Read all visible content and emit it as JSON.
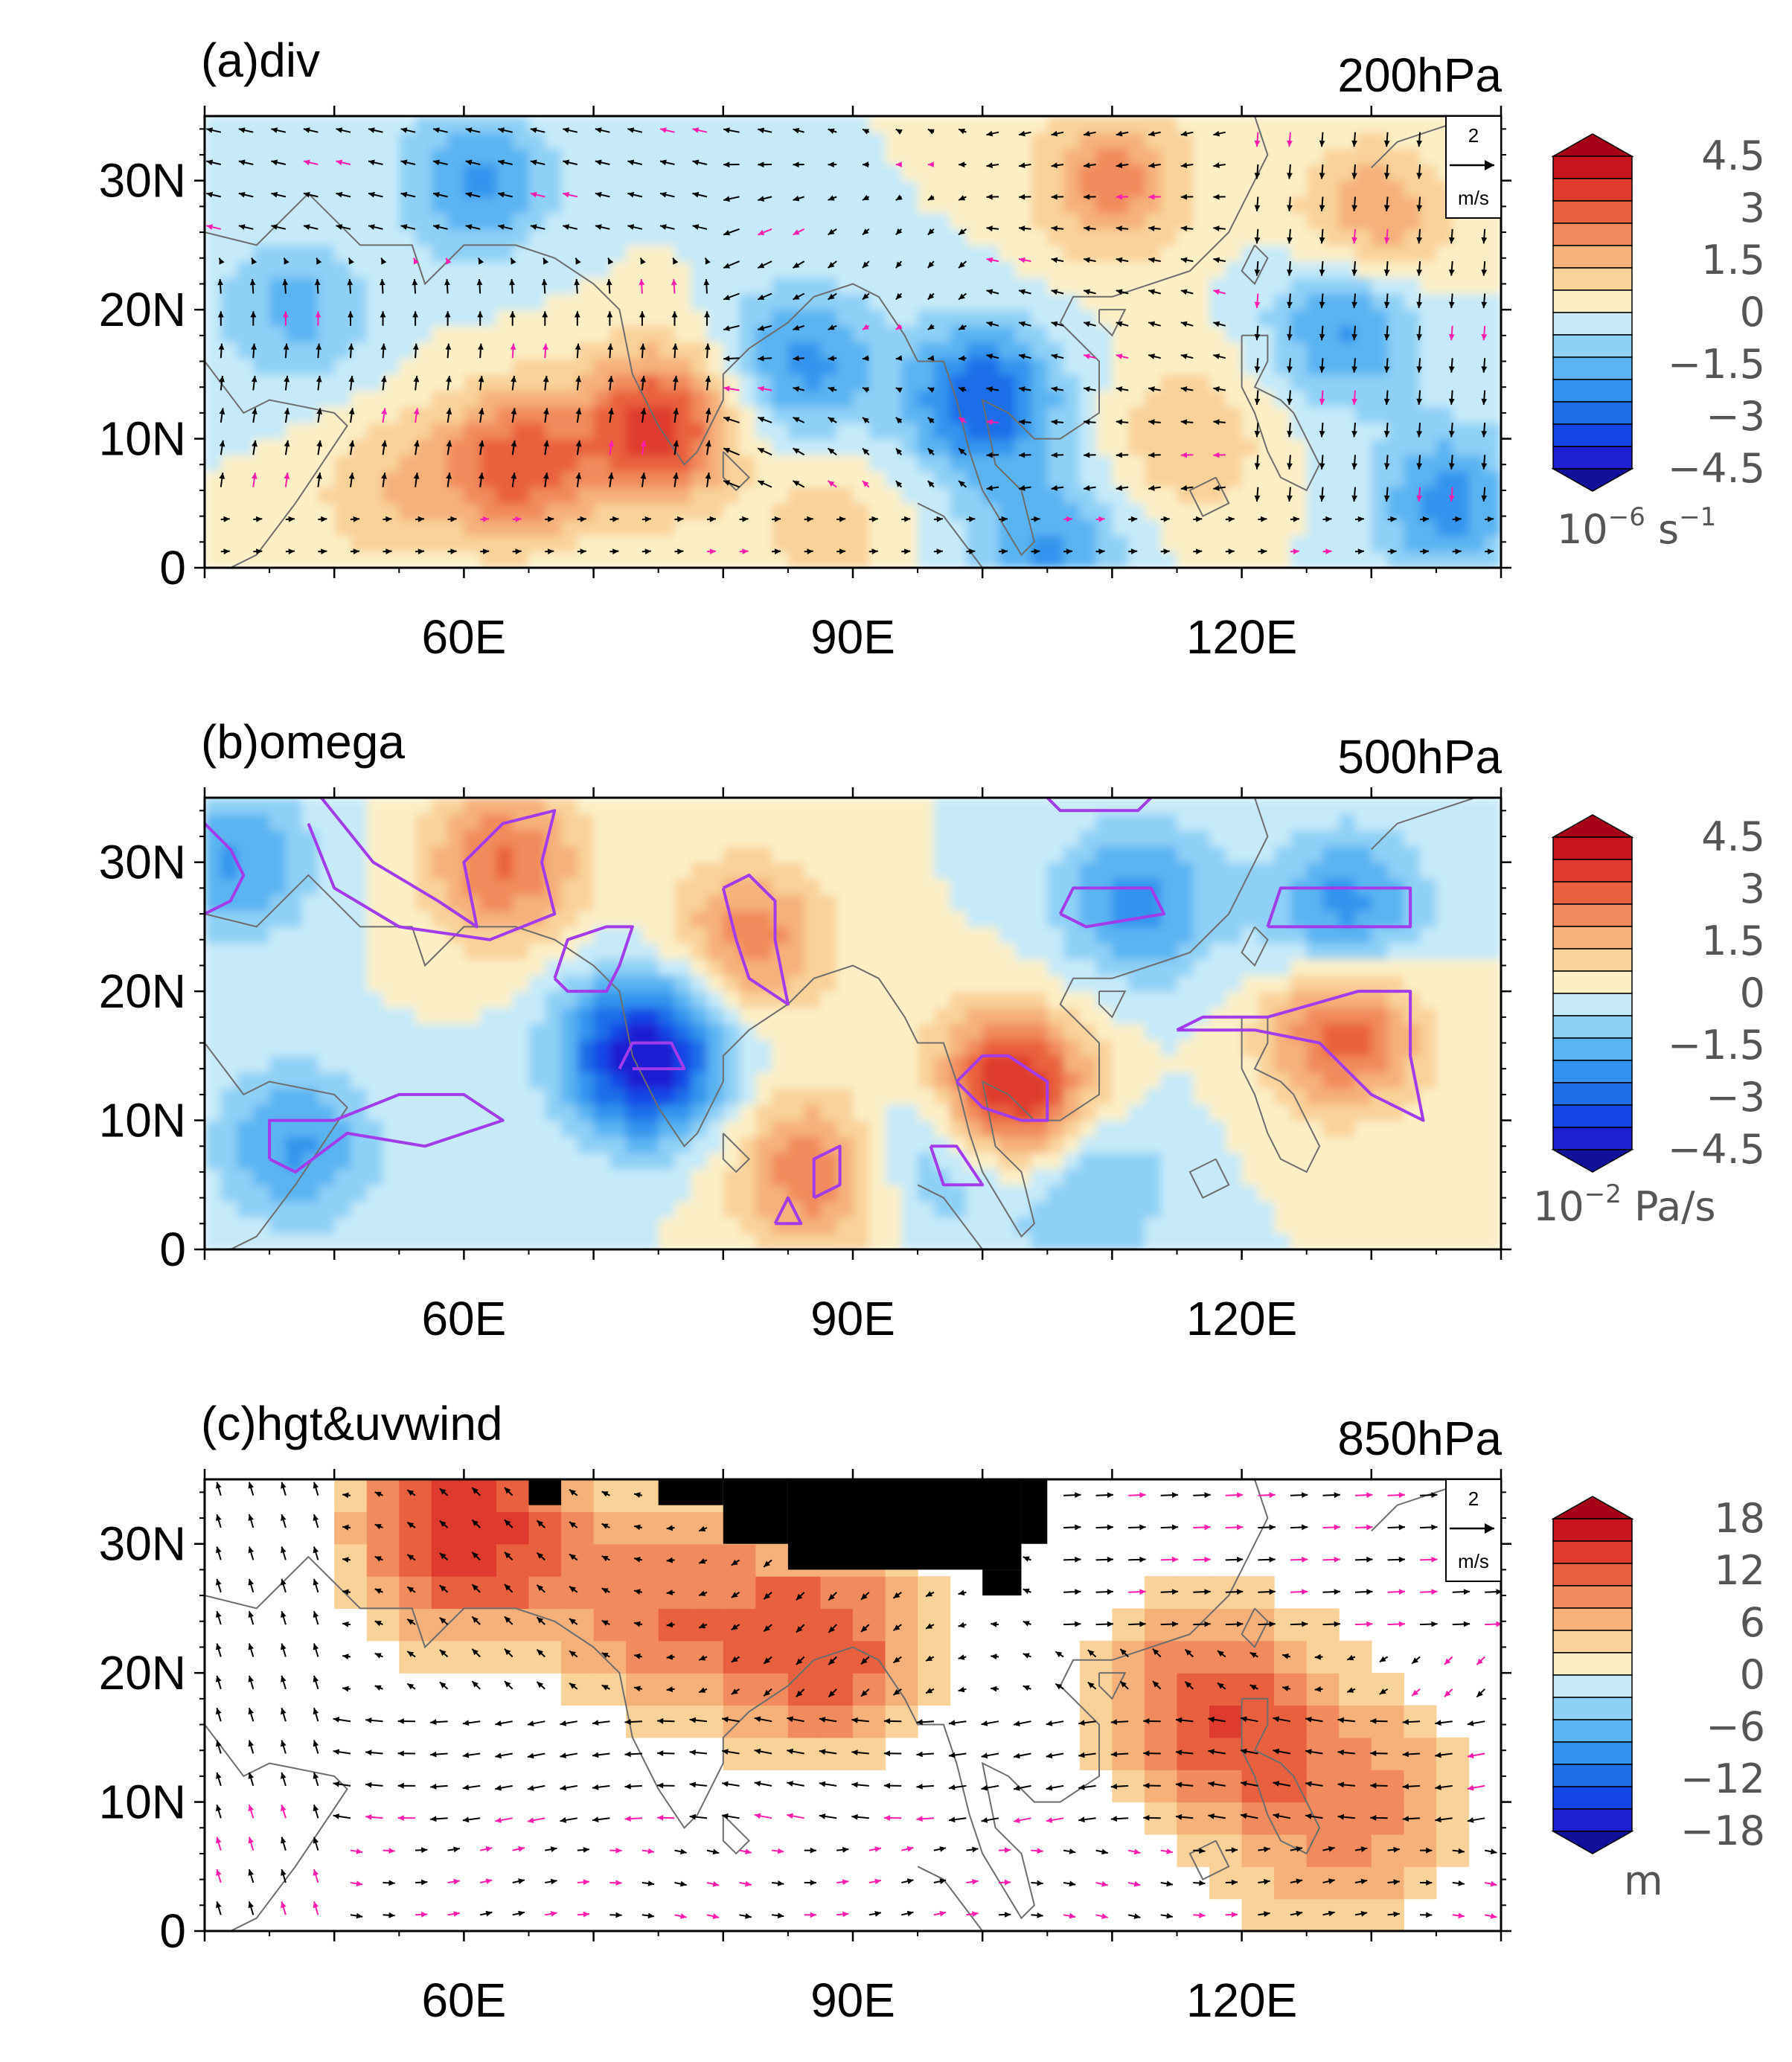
{
  "figure_kind": "three-panel climate anomaly map",
  "x_ticks": [
    "60E",
    "90E",
    "120E"
  ],
  "y_ticks": [
    "0",
    "10N",
    "20N",
    "30N"
  ],
  "panels": [
    {
      "id": "a",
      "title": "(a)div",
      "level": "200hPa",
      "colorbar_ticks": [
        "4.5",
        "3",
        "1.5",
        "0",
        "−1.5",
        "−3",
        "−4.5"
      ],
      "units_base": "10",
      "units_exp": "−6",
      "units_unit": " s",
      "units_unit_exp": "−1",
      "ref_vector": {
        "value": "2",
        "unit": "m/s"
      },
      "colors": {
        "pos": "#e8453a",
        "neg": "#2b8fe0"
      }
    },
    {
      "id": "b",
      "title": "(b)omega",
      "level": "500hPa",
      "colorbar_ticks": [
        "4.5",
        "3",
        "1.5",
        "0",
        "−1.5",
        "−3",
        "−4.5"
      ],
      "units_base": "10",
      "units_exp": "−2",
      "units_unit": " Pa/s",
      "units_unit_exp": "",
      "contour_color": "#a23bea"
    },
    {
      "id": "c",
      "title": "(c)hgt&uvwind",
      "level": "850hPa",
      "colorbar_ticks": [
        "18",
        "12",
        "6",
        "0",
        "−6",
        "−12",
        "−18"
      ],
      "units_base": "m",
      "units_exp": "",
      "units_unit": "",
      "units_unit_exp": "",
      "ref_vector": {
        "value": "2",
        "unit": "m/s"
      },
      "colors": {
        "vector_black": "#000000",
        "vector_magenta": "#ff1cae"
      }
    }
  ],
  "chart_data": {
    "type": "heatmap",
    "projection": "lat-lon",
    "x_range": [
      40,
      140
    ],
    "y_range": [
      0,
      35
    ],
    "fields": [
      {
        "panel": "a",
        "variable": "divergence",
        "units": "10^-6 s^-1",
        "levels": [
          -4.5,
          -3,
          -1.5,
          0,
          1.5,
          3,
          4.5
        ],
        "vectors": "wind",
        "blobs": [
          {
            "lon": 75,
            "lat": 11,
            "value": 3.6
          },
          {
            "lon": 64,
            "lat": 8,
            "value": 3.0
          },
          {
            "lon": 54,
            "lat": 6,
            "value": 1.2
          },
          {
            "lon": 88,
            "lat": 3,
            "value": 1.0
          },
          {
            "lon": 100,
            "lat": 13,
            "value": -3.2
          },
          {
            "lon": 86,
            "lat": 16,
            "value": -2.2
          },
          {
            "lon": 110,
            "lat": 30,
            "value": 2.2
          },
          {
            "lon": 130,
            "lat": 27,
            "value": 2.0
          },
          {
            "lon": 128,
            "lat": 19,
            "value": -2.2
          },
          {
            "lon": 61,
            "lat": 30,
            "value": -2.0
          },
          {
            "lon": 105,
            "lat": 1,
            "value": -2.0
          },
          {
            "lon": 136,
            "lat": 5,
            "value": -2.2
          },
          {
            "lon": 47,
            "lat": 20,
            "value": -1.5
          },
          {
            "lon": 116,
            "lat": 10,
            "value": 1.3
          }
        ]
      },
      {
        "panel": "b",
        "variable": "omega",
        "units": "10^-2 Pa/s",
        "levels": [
          -4.5,
          -3,
          -1.5,
          0,
          1.5,
          3,
          4.5
        ],
        "blobs": [
          {
            "lon": 74,
            "lat": 15,
            "value": -4.6
          },
          {
            "lon": 102,
            "lat": 12,
            "value": 4.6
          },
          {
            "lon": 128,
            "lat": 17,
            "value": 3.0
          },
          {
            "lon": 63,
            "lat": 30,
            "value": 2.6
          },
          {
            "lon": 82,
            "lat": 24,
            "value": 2.3
          },
          {
            "lon": 87,
            "lat": 6,
            "value": 2.5
          },
          {
            "lon": 112,
            "lat": 27,
            "value": -2.2
          },
          {
            "lon": 128,
            "lat": 26,
            "value": -2.4
          },
          {
            "lon": 97,
            "lat": 8,
            "value": -2.0
          },
          {
            "lon": 47,
            "lat": 8,
            "value": -2.0
          },
          {
            "lon": 42,
            "lat": 30,
            "value": -2.0
          },
          {
            "lon": 108,
            "lat": 5,
            "value": -1.6
          }
        ]
      },
      {
        "panel": "c",
        "variable": "geopotential height",
        "units": "m",
        "levels": [
          -18,
          -12,
          -6,
          0,
          6,
          12,
          18
        ],
        "vectors": "wind",
        "blobs": [
          {
            "lon": 60,
            "lat": 31,
            "value": 15
          },
          {
            "lon": 88,
            "lat": 22,
            "value": 12
          },
          {
            "lon": 118,
            "lat": 17,
            "value": 13
          },
          {
            "lon": 75,
            "lat": 25,
            "value": 9
          },
          {
            "lon": 130,
            "lat": 10,
            "value": 7
          },
          {
            "lon": 125,
            "lat": 3,
            "value": 3
          }
        ]
      }
    ]
  }
}
